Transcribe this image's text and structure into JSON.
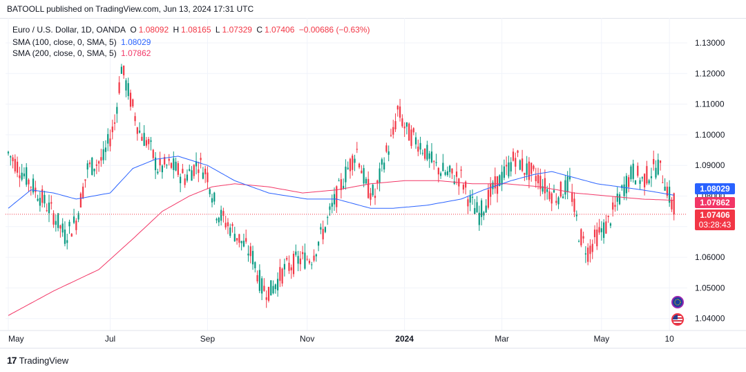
{
  "publisher": "BATOOLL published on TradingView.com, Jun 13, 2024 17:31 UTC",
  "brand": "TradingView",
  "brand_logo": "17",
  "legend": {
    "symbol_line": "Euro / U.S. Dollar, 1D, OANDA",
    "o_label": "O",
    "o_value": "1.08092",
    "h_label": "H",
    "h_value": "1.08165",
    "l_label": "L",
    "l_value": "1.07329",
    "c_label": "C",
    "c_value": "1.07406",
    "change": "−0.00686 (−0.63%)",
    "sma100_label": "SMA (100, close, 0, SMA, 5)",
    "sma100_value": "1.08029",
    "sma200_label": "SMA (200, close, 0, SMA, 5)",
    "sma200_value": "1.07862"
  },
  "price_tags": {
    "sma100": "1.08029",
    "sma200": "1.07862",
    "last": "1.07406",
    "countdown": "03:28:43"
  },
  "colors": {
    "up": "#089981",
    "down": "#f23645",
    "sma100": "#2962ff",
    "sma200": "#f23666",
    "grid": "#f0f3fa",
    "axis_text": "#131722"
  },
  "icons": [
    "euro-flag-icon",
    "us-flag-icon"
  ],
  "chart_data": {
    "type": "candlestick",
    "title": "Euro / U.S. Dollar, 1D, OANDA",
    "ylim": [
      1.038,
      1.136
    ],
    "y_ticks": [
      "1.13000",
      "1.12000",
      "1.11000",
      "1.10000",
      "1.09000",
      "1.08000",
      "1.07000",
      "1.06000",
      "1.05000",
      "1.04000"
    ],
    "x_ticks": [
      "May",
      "Jul",
      "Sep",
      "Nov",
      "2024",
      "Mar",
      "May",
      "10"
    ],
    "x_tick_index": [
      0,
      45,
      88,
      132,
      175,
      218,
      262,
      292
    ],
    "last_close": 1.07406,
    "trend_keypoints": [
      [
        0,
        1.094
      ],
      [
        10,
        1.084
      ],
      [
        20,
        1.074
      ],
      [
        25,
        1.067
      ],
      [
        30,
        1.072
      ],
      [
        35,
        1.089
      ],
      [
        42,
        1.092
      ],
      [
        47,
        1.104
      ],
      [
        50,
        1.122
      ],
      [
        53,
        1.114
      ],
      [
        58,
        1.101
      ],
      [
        62,
        1.097
      ],
      [
        66,
        1.089
      ],
      [
        72,
        1.09
      ],
      [
        78,
        1.086
      ],
      [
        84,
        1.091
      ],
      [
        88,
        1.087
      ],
      [
        92,
        1.075
      ],
      [
        100,
        1.068
      ],
      [
        108,
        1.06
      ],
      [
        112,
        1.05
      ],
      [
        116,
        1.049
      ],
      [
        122,
        1.056
      ],
      [
        128,
        1.059
      ],
      [
        134,
        1.06
      ],
      [
        140,
        1.07
      ],
      [
        144,
        1.078
      ],
      [
        150,
        1.089
      ],
      [
        154,
        1.095
      ],
      [
        158,
        1.083
      ],
      [
        162,
        1.08
      ],
      [
        166,
        1.092
      ],
      [
        170,
        1.1
      ],
      [
        172,
        1.108
      ],
      [
        176,
        1.101
      ],
      [
        182,
        1.097
      ],
      [
        188,
        1.09
      ],
      [
        194,
        1.087
      ],
      [
        200,
        1.086
      ],
      [
        204,
        1.078
      ],
      [
        208,
        1.074
      ],
      [
        214,
        1.082
      ],
      [
        220,
        1.088
      ],
      [
        224,
        1.093
      ],
      [
        228,
        1.089
      ],
      [
        234,
        1.086
      ],
      [
        238,
        1.082
      ],
      [
        242,
        1.08
      ],
      [
        248,
        1.084
      ],
      [
        252,
        1.068
      ],
      [
        256,
        1.062
      ],
      [
        260,
        1.067
      ],
      [
        264,
        1.07
      ],
      [
        268,
        1.076
      ],
      [
        272,
        1.083
      ],
      [
        276,
        1.088
      ],
      [
        280,
        1.085
      ],
      [
        284,
        1.088
      ],
      [
        287,
        1.09
      ],
      [
        290,
        1.085
      ],
      [
        292,
        1.08
      ],
      [
        294,
        1.074
      ]
    ],
    "sma100_keypoints": [
      [
        0,
        1.076
      ],
      [
        10,
        1.082
      ],
      [
        20,
        1.081
      ],
      [
        30,
        1.079
      ],
      [
        45,
        1.081
      ],
      [
        55,
        1.089
      ],
      [
        65,
        1.092
      ],
      [
        75,
        1.093
      ],
      [
        88,
        1.09
      ],
      [
        100,
        1.085
      ],
      [
        115,
        1.081
      ],
      [
        132,
        1.079
      ],
      [
        145,
        1.079
      ],
      [
        155,
        1.077
      ],
      [
        160,
        1.076
      ],
      [
        170,
        1.076
      ],
      [
        185,
        1.077
      ],
      [
        200,
        1.079
      ],
      [
        210,
        1.082
      ],
      [
        222,
        1.085
      ],
      [
        232,
        1.087
      ],
      [
        240,
        1.088
      ],
      [
        250,
        1.086
      ],
      [
        260,
        1.084
      ],
      [
        270,
        1.083
      ],
      [
        280,
        1.082
      ],
      [
        294,
        1.08029
      ]
    ],
    "sma200_keypoints": [
      [
        0,
        1.041
      ],
      [
        20,
        1.049
      ],
      [
        40,
        1.056
      ],
      [
        55,
        1.066
      ],
      [
        68,
        1.075
      ],
      [
        80,
        1.08
      ],
      [
        90,
        1.083
      ],
      [
        100,
        1.084
      ],
      [
        115,
        1.083
      ],
      [
        130,
        1.081
      ],
      [
        145,
        1.082
      ],
      [
        160,
        1.084
      ],
      [
        175,
        1.085
      ],
      [
        190,
        1.085
      ],
      [
        205,
        1.084
      ],
      [
        220,
        1.084
      ],
      [
        235,
        1.083
      ],
      [
        250,
        1.081
      ],
      [
        265,
        1.08
      ],
      [
        280,
        1.079
      ],
      [
        294,
        1.07862
      ]
    ]
  }
}
